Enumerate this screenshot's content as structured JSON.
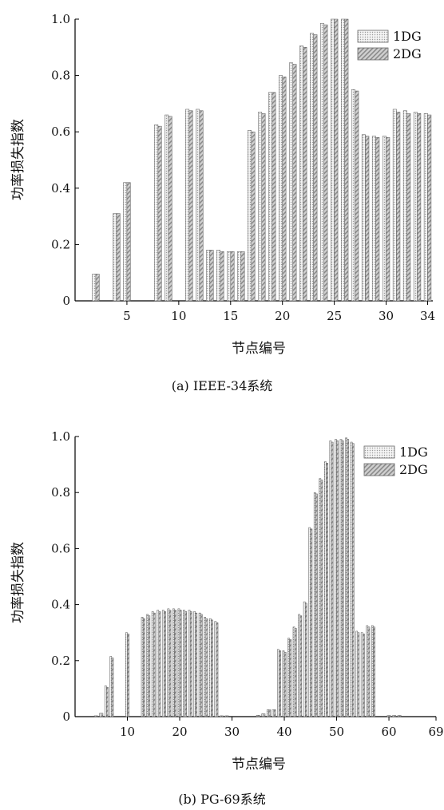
{
  "chart_data": [
    {
      "type": "bar",
      "caption": "(a) IEEE-34系统",
      "xlabel": "节点编号",
      "ylabel": "功率损失指数",
      "ylim": [
        0,
        1.0
      ],
      "yticks": [
        0,
        0.2,
        0.4,
        0.6,
        0.8,
        1.0
      ],
      "ytick_labels": [
        "0",
        "0.2",
        "0.4",
        "0.6",
        "0.8",
        "1.0"
      ],
      "xlim": [
        0,
        34.5
      ],
      "xticks": [
        5,
        10,
        15,
        20,
        25,
        30,
        34
      ],
      "legend_position": "top-right",
      "series": [
        {
          "name": "1DG",
          "color": "#ececec",
          "pattern": "dots",
          "values": [
            0,
            0.095,
            0,
            0.31,
            0.42,
            0,
            0,
            0.625,
            0.66,
            0,
            0.68,
            0.68,
            0.18,
            0.18,
            0.175,
            0.175,
            0.605,
            0.67,
            0.74,
            0.8,
            0.845,
            0.905,
            0.95,
            0.985,
            1.0,
            1.0,
            0.75,
            0.59,
            0.585,
            0.585,
            0.68,
            0.675,
            0.67,
            0.665
          ]
        },
        {
          "name": "2DG",
          "color": "#c8c8c8",
          "pattern": "stripes",
          "values": [
            0,
            0.095,
            0,
            0.31,
            0.42,
            0,
            0,
            0.62,
            0.655,
            0,
            0.675,
            0.675,
            0.18,
            0.175,
            0.175,
            0.175,
            0.6,
            0.665,
            0.74,
            0.795,
            0.84,
            0.9,
            0.945,
            0.98,
            1.0,
            1.0,
            0.745,
            0.585,
            0.58,
            0.58,
            0.67,
            0.665,
            0.665,
            0.66
          ]
        }
      ]
    },
    {
      "type": "bar",
      "caption": "(b) PG-69系统",
      "xlabel": "节点编号",
      "ylabel": "功率损失指数",
      "ylim": [
        0,
        1.0
      ],
      "yticks": [
        0,
        0.2,
        0.4,
        0.6,
        0.8,
        1.0
      ],
      "ytick_labels": [
        "0",
        "0.2",
        "0.4",
        "0.6",
        "0.8",
        "1.0"
      ],
      "xlim": [
        0,
        69
      ],
      "xticks": [
        10,
        20,
        30,
        40,
        50,
        60,
        69
      ],
      "legend_position": "top-right",
      "series": [
        {
          "name": "1DG",
          "color": "#ececec",
          "pattern": "dots",
          "values": [
            0,
            0,
            0,
            0.003,
            0.012,
            0.11,
            0.215,
            0,
            0,
            0.3,
            0,
            0,
            0.355,
            0.365,
            0.375,
            0.38,
            0.38,
            0.385,
            0.385,
            0.385,
            0.38,
            0.38,
            0.375,
            0.37,
            0.355,
            0.35,
            0.34,
            0.003,
            0.003,
            0,
            0,
            0,
            0,
            0,
            0.005,
            0.01,
            0.025,
            0.025,
            0.24,
            0.235,
            0.28,
            0.32,
            0.365,
            0.41,
            0.675,
            0.8,
            0.85,
            0.91,
            0.985,
            0.99,
            0.99,
            0.995,
            0.98,
            0.305,
            0.3,
            0.325,
            0.325,
            0,
            0,
            0.004,
            0.004,
            0.004,
            0,
            0,
            0,
            0,
            0,
            0,
            0
          ]
        },
        {
          "name": "2DG",
          "color": "#c8c8c8",
          "pattern": "stripes",
          "values": [
            0,
            0,
            0,
            0.003,
            0.012,
            0.105,
            0.21,
            0,
            0,
            0.295,
            0,
            0,
            0.35,
            0.36,
            0.37,
            0.375,
            0.375,
            0.38,
            0.38,
            0.38,
            0.375,
            0.375,
            0.37,
            0.365,
            0.35,
            0.345,
            0.335,
            0.003,
            0.003,
            0,
            0,
            0,
            0,
            0,
            0.005,
            0.01,
            0.025,
            0.025,
            0.235,
            0.23,
            0.275,
            0.315,
            0.36,
            0.405,
            0.67,
            0.795,
            0.845,
            0.905,
            0.98,
            0.985,
            0.985,
            0.99,
            0.975,
            0.3,
            0.295,
            0.32,
            0.32,
            0,
            0,
            0.004,
            0.004,
            0.004,
            0,
            0,
            0,
            0,
            0,
            0,
            0
          ]
        }
      ]
    }
  ]
}
